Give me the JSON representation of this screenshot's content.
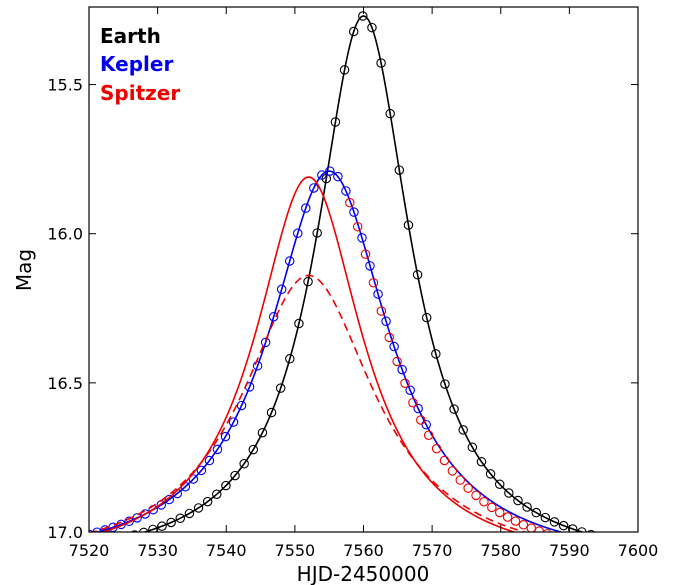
{
  "chart_data": {
    "type": "line",
    "title": "",
    "xlabel": "HJD-2450000",
    "ylabel": "Mag",
    "xlim": [
      7520,
      7600
    ],
    "ylim": [
      17.0,
      15.24
    ],
    "y_inverted": true,
    "grid": false,
    "legend_placement": "top-left",
    "x_ticks": [
      "7520",
      "7530",
      "7540",
      "7550",
      "7560",
      "7570",
      "7580",
      "7590",
      "7600"
    ],
    "y_ticks": [
      "15.5",
      "16.0",
      "16.5",
      "17.0"
    ],
    "legend": [
      {
        "label": "Earth",
        "color": "#000000"
      },
      {
        "label": "Kepler",
        "color": "#0000ee"
      },
      {
        "label": "Spitzer",
        "color": "#ee0000"
      }
    ],
    "series": [
      {
        "name": "Earth",
        "style": "solid-line-with-circle-markers",
        "color": "#000000",
        "model": {
          "peak_x": 7560,
          "peak_mag": 15.27,
          "baseline_mag": 17.12,
          "width": 15.0
        },
        "marker_x_range": [
          7520,
          7600
        ],
        "marker_step": 1.33
      },
      {
        "name": "Kepler",
        "style": "solid-line-with-circle-markers",
        "color": "#0000ee",
        "model": {
          "peak_x": 7555,
          "peak_mag": 15.79,
          "baseline_mag": 17.12,
          "width": 19.0
        },
        "marker_x_range": [
          7520,
          7570
        ],
        "marker_step": 1.17
      },
      {
        "name": "Spitzer",
        "style": "solid-line",
        "color": "#ee0000",
        "model": {
          "peak_x": 7552,
          "peak_mag": 15.81,
          "baseline_mag": 17.12,
          "width": 17.0
        }
      },
      {
        "name": "Spitzer",
        "style": "circle-markers",
        "color": "#ee0000",
        "model": {
          "peak_x": 7555,
          "peak_mag": 15.79,
          "baseline_mag": 17.12,
          "width": 19.0,
          "post_peak_offset": 0.02
        },
        "marker_x_range": [
          7558,
          7596
        ],
        "marker_step": 1.15
      },
      {
        "name": "Spitzer",
        "style": "dashed-line",
        "color": "#ee0000",
        "model": {
          "peak_x": 7552,
          "peak_mag": 16.14,
          "baseline_mag": 17.12,
          "width": 21.0
        }
      }
    ]
  }
}
